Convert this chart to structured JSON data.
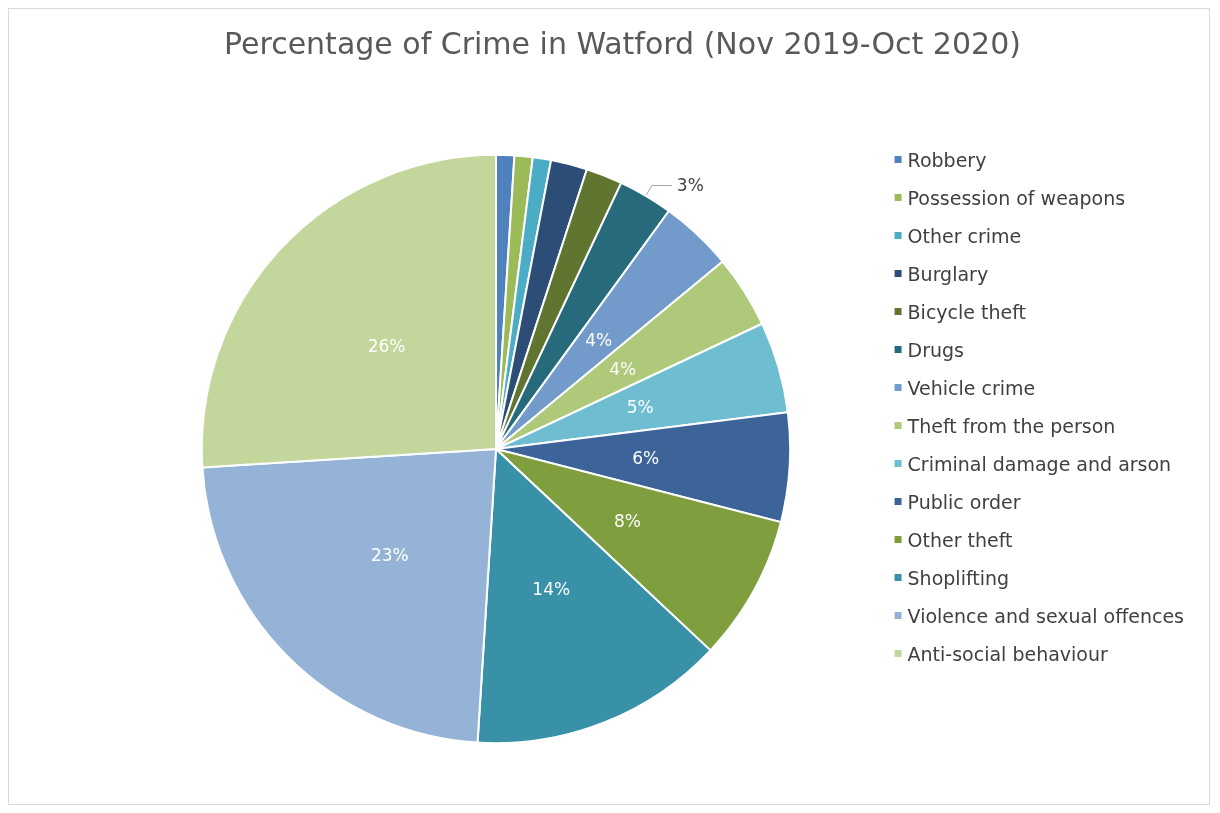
{
  "chart_data": {
    "type": "pie",
    "title": "Percentage of Crime in Watford (Nov 2019-Oct 2020)",
    "categories": [
      "Robbery",
      "Possession of weapons",
      "Other crime",
      "Burglary",
      "Bicycle theft",
      "Drugs",
      "Vehicle crime",
      "Theft from the person",
      "Criminal damage and arson",
      "Public order",
      "Other theft",
      "Shoplifting",
      "Violence and sexual offences",
      "Anti-social behaviour"
    ],
    "values": [
      1,
      1,
      1,
      2,
      2,
      3,
      4,
      4,
      5,
      6,
      8,
      14,
      23,
      26
    ],
    "colors": [
      "#4f81bd",
      "#9bbb59",
      "#4bacc6",
      "#2c4d75",
      "#5f7530",
      "#276a7c",
      "#729aca",
      "#afc97a",
      "#6fbdd1",
      "#3c6499",
      "#7f9f3f",
      "#3891a7",
      "#95b3d7",
      "#c3d69b"
    ],
    "value_labels": [
      null,
      null,
      null,
      null,
      null,
      "3%",
      "4%",
      "4%",
      "5%",
      "6%",
      "8%",
      "14%",
      "23%",
      "26%"
    ],
    "legend": "right"
  }
}
